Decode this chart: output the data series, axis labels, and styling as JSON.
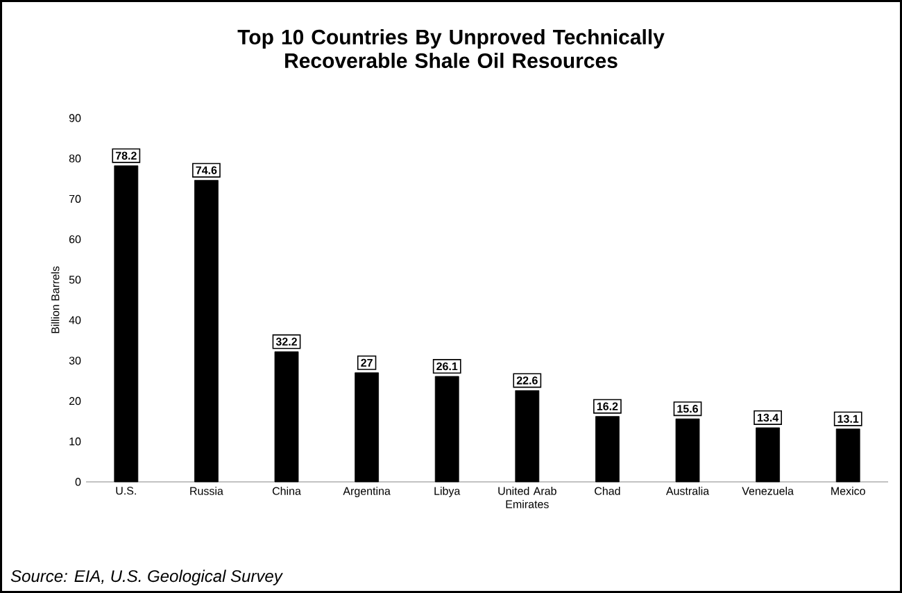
{
  "chart_data": {
    "type": "bar",
    "title": "Top 10 Countries By Unproved Technically Recoverable Shale Oil Resources",
    "ylabel": "Billion Barrels",
    "categories": [
      "U.S.",
      "Russia",
      "China",
      "Argentina",
      "Libya",
      "United Arab Emirates",
      "Chad",
      "Australia",
      "Venezuela",
      "Mexico"
    ],
    "values": [
      78.2,
      74.6,
      32.2,
      27,
      26.1,
      22.6,
      16.2,
      15.6,
      13.4,
      13.1
    ],
    "color": "#000000",
    "ylim": [
      0,
      90
    ],
    "yticks": [
      0,
      10,
      20,
      30,
      40,
      50,
      60,
      70,
      80,
      90
    ],
    "data_labels": true,
    "grid": false,
    "annotations": [
      "Source: EIA, U.S. Geological Survey"
    ]
  }
}
